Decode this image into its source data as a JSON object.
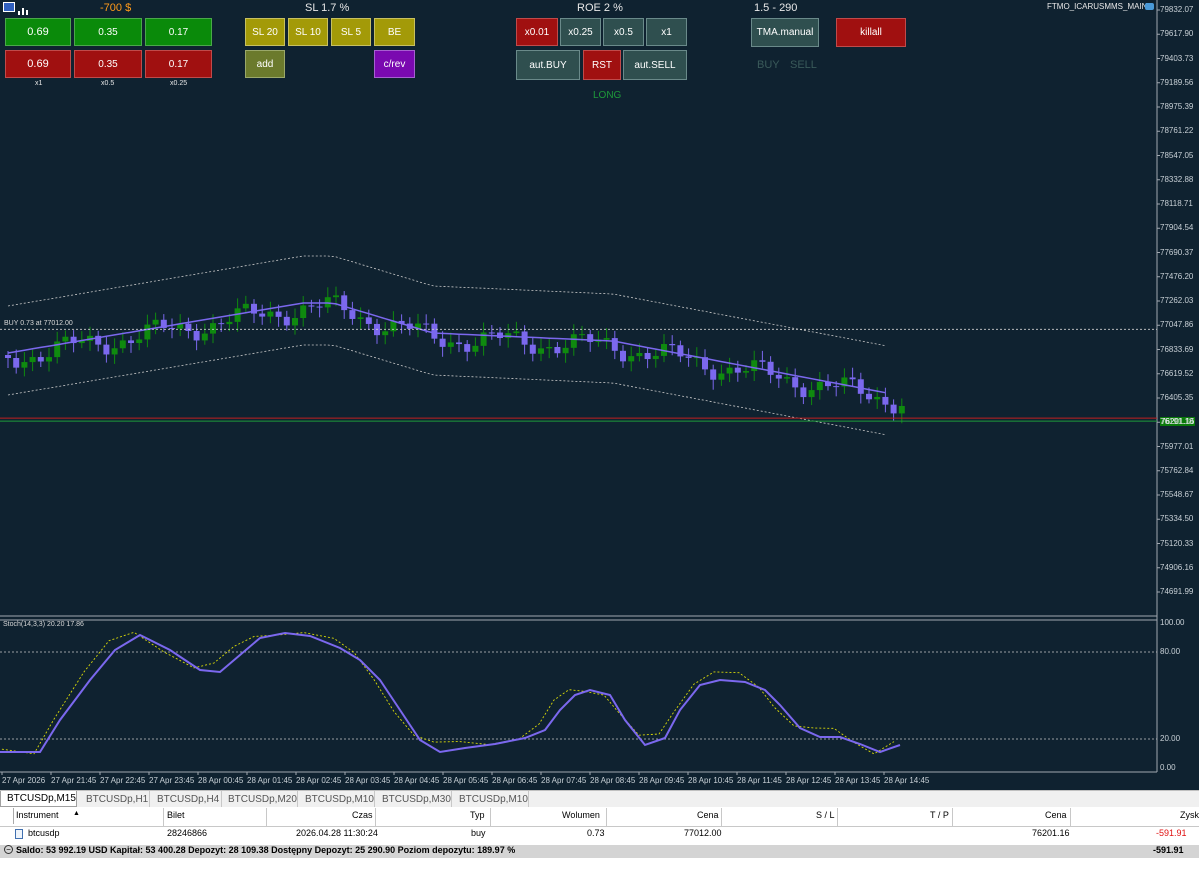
{
  "window": {
    "title": "FTMO_ICARUSMMS_MAIN"
  },
  "panel": {
    "pnl_label": "-700 $",
    "sl_label": "SL 1.7 %",
    "roe_label": "ROE 2 %",
    "ratio_label": "1.5 - 290",
    "buy_lots": [
      "0.69",
      "0.35",
      "0.17"
    ],
    "sell_lots": [
      "0.69",
      "0.35",
      "0.17"
    ],
    "lot_multipliers": [
      "x1",
      "x0.5",
      "x0.25"
    ],
    "sl_buttons": [
      "SL 20",
      "SL 10",
      "SL 5",
      "BE"
    ],
    "add_label": "add",
    "crev_label": "c/rev",
    "size_buttons": [
      "x0.01",
      "x0.25",
      "x0.5",
      "x1"
    ],
    "aut_buy_label": "aut.BUY",
    "rst_label": "RST",
    "aut_sell_label": "aut.SELL",
    "long_label": "LONG",
    "tma_label": "TMA.manual",
    "killall_label": "killall",
    "buy_state": "BUY",
    "sell_state": "SELL"
  },
  "chart": {
    "position_line_label": "BUY 0.73 at 77012.00",
    "current_price": "76201.16",
    "price_ticks": [
      "79832.07",
      "79617.90",
      "79403.73",
      "79189.56",
      "78975.39",
      "78761.22",
      "78547.05",
      "78332.88",
      "78118.71",
      "77904.54",
      "77690.37",
      "77476.20",
      "77262.03",
      "77047.86",
      "76833.69",
      "76619.52",
      "76405.35",
      "76191.18",
      "75977.01",
      "75762.84",
      "75548.67",
      "75334.50",
      "75120.33",
      "74906.16",
      "74691.99"
    ],
    "time_ticks": [
      "27 Apr 2026",
      "27 Apr 21:45",
      "27 Apr 22:45",
      "27 Apr 23:45",
      "28 Apr 00:45",
      "28 Apr 01:45",
      "28 Apr 02:45",
      "28 Apr 03:45",
      "28 Apr 04:45",
      "28 Apr 05:45",
      "28 Apr 06:45",
      "28 Apr 07:45",
      "28 Apr 08:45",
      "28 Apr 09:45",
      "28 Apr 10:45",
      "28 Apr 11:45",
      "28 Apr 12:45",
      "28 Apr 13:45",
      "28 Apr 14:45"
    ],
    "stoch_label": "Stoch(14,3,3) 20.20 17.86",
    "stoch_ticks": [
      "100.00",
      "80.00",
      "20.00",
      "0.00"
    ],
    "colors": {
      "bull": "#0f8a0f",
      "bear": "#7b68ee",
      "band": "#c8c8c8",
      "bg": "#0f2230"
    }
  },
  "tabs": [
    "BTCUSDp,M15",
    "BTCUSDp,H1",
    "BTCUSDp,H4",
    "BTCUSDp,M20",
    "BTCUSDp,M10",
    "BTCUSDp,M30",
    "BTCUSDp,M10"
  ],
  "terminal": {
    "headers": {
      "instrument": "Instrument",
      "ticket": "Bilet",
      "time": "Czas",
      "type": "Typ",
      "volume": "Wolumen",
      "price": "Cena",
      "sl": "S / L",
      "tp": "T / P",
      "cur_price": "Cena",
      "profit": "Zysk"
    },
    "row": {
      "instrument": "btcusdp",
      "ticket": "28246866",
      "time": "2026.04.28 11:30:24",
      "type": "buy",
      "volume": "0.73",
      "price": "77012.00",
      "cur_price": "76201.16",
      "profit": "-591.91"
    },
    "summary": "Saldo: 53 992.19 USD  Kapitał: 53 400.28  Depozyt: 28 109.38  Dostępny Depozyt: 25 290.90  Poziom depozytu: 189.97 %",
    "summary_profit": "-591.91"
  }
}
